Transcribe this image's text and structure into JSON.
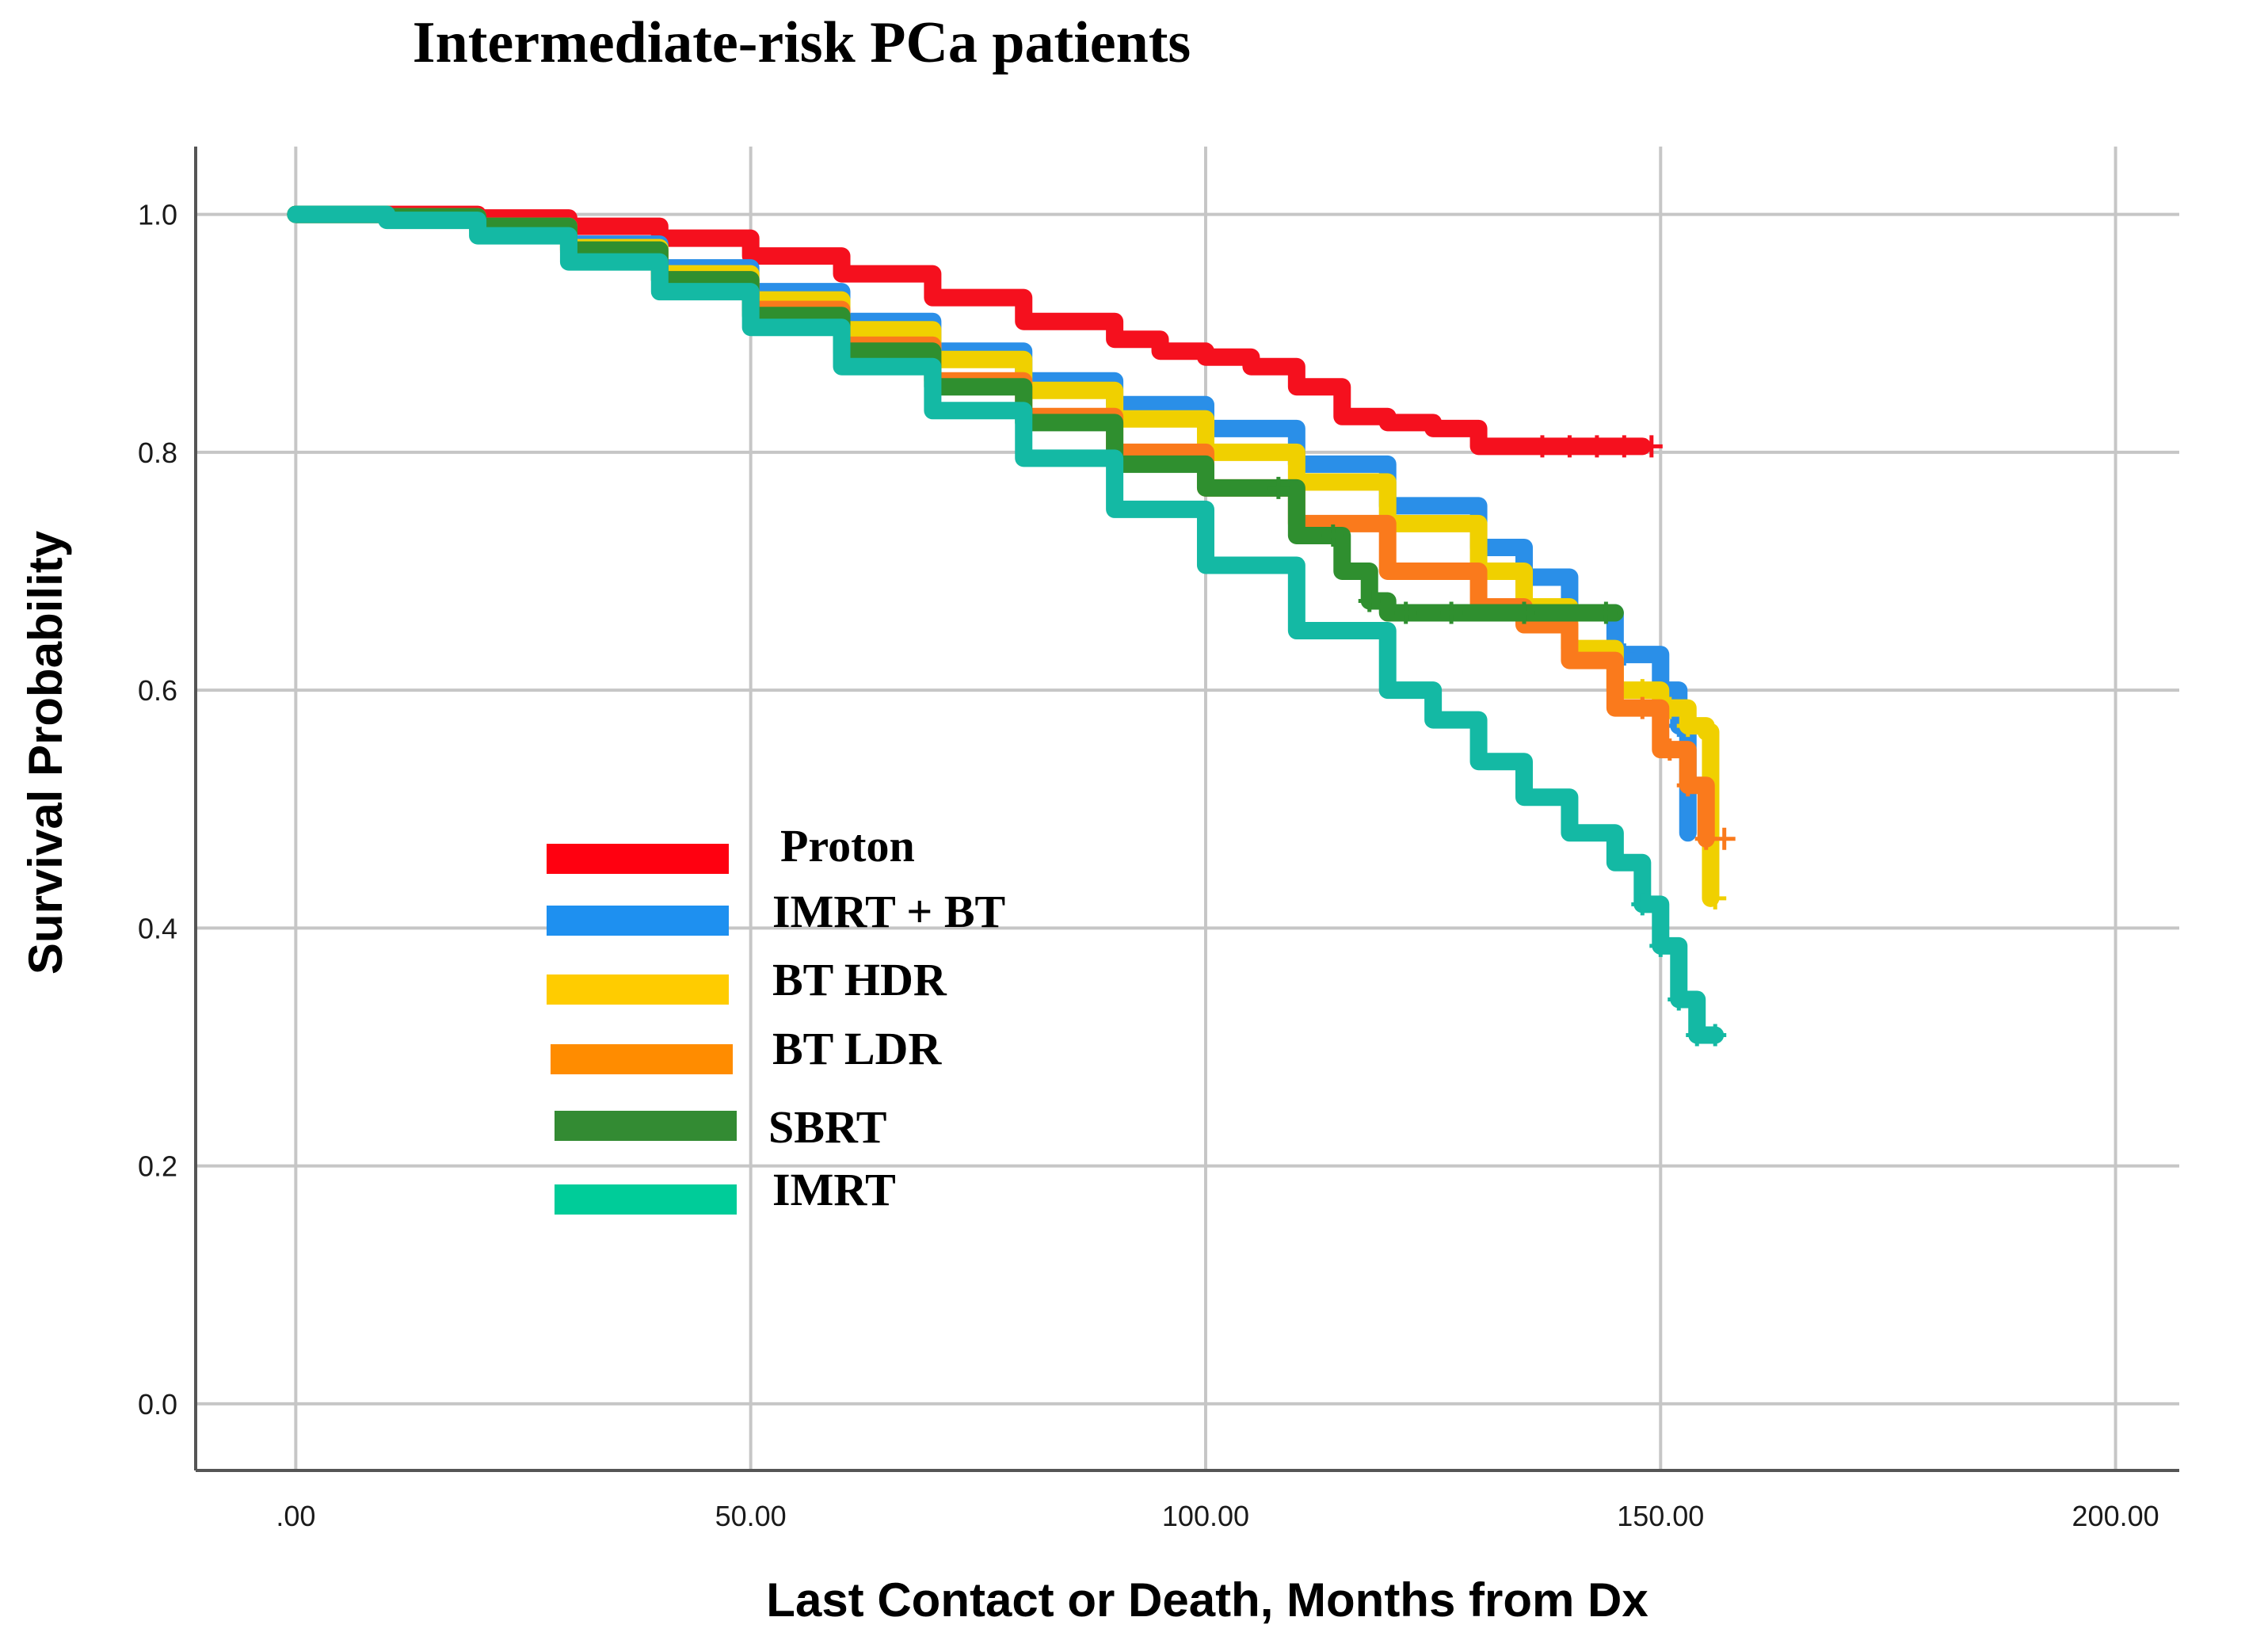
{
  "chart_data": {
    "type": "line",
    "title": "Intermediate-risk PCa patients",
    "xlabel": "Last Contact or Death, Months from Dx",
    "ylabel": "Survival Probability",
    "xlim": [
      -11,
      207
    ],
    "ylim": [
      -0.056,
      1.057
    ],
    "xticks": [
      0,
      50,
      100,
      150,
      200
    ],
    "xtick_labels": [
      ".00",
      "50.00",
      "100.00",
      "150.00",
      "200.00"
    ],
    "yticks": [
      0.0,
      0.2,
      0.4,
      0.6,
      0.8,
      1.0
    ],
    "ytick_labels": [
      "0.0",
      "0.2",
      "0.4",
      "0.6",
      "0.8",
      "1.0"
    ],
    "grid": true,
    "legend_position": "lower-left",
    "series": [
      {
        "name": "Proton",
        "color": "#f5101e",
        "x": [
          0,
          10,
          20,
          30,
          40,
          50,
          60,
          70,
          80,
          90,
          95,
          100,
          105,
          110,
          115,
          120,
          125,
          130,
          135,
          140,
          148
        ],
        "y": [
          1.0,
          1.0,
          0.997,
          0.99,
          0.98,
          0.965,
          0.95,
          0.93,
          0.91,
          0.895,
          0.885,
          0.88,
          0.872,
          0.855,
          0.83,
          0.825,
          0.82,
          0.805,
          0.805,
          0.805,
          0.805
        ],
        "censor_x": [
          137,
          140,
          143,
          146,
          149
        ]
      },
      {
        "name": "IMRT + BT",
        "color": "#2a8fe8",
        "x": [
          0,
          10,
          20,
          30,
          40,
          50,
          60,
          70,
          80,
          90,
          100,
          110,
          120,
          130,
          135,
          140,
          145,
          150,
          152,
          153
        ],
        "y": [
          1.0,
          0.998,
          0.99,
          0.975,
          0.955,
          0.935,
          0.91,
          0.885,
          0.86,
          0.84,
          0.82,
          0.79,
          0.755,
          0.72,
          0.695,
          0.665,
          0.63,
          0.6,
          0.57,
          0.48
        ],
        "censor_x": [
          140,
          146,
          150,
          152
        ]
      },
      {
        "name": "BT HDR",
        "color": "#f0d000",
        "x": [
          0,
          10,
          20,
          30,
          40,
          50,
          60,
          70,
          80,
          90,
          100,
          110,
          120,
          130,
          135,
          140,
          145,
          150,
          153,
          155,
          155.5
        ],
        "y": [
          1.0,
          0.998,
          0.99,
          0.972,
          0.95,
          0.928,
          0.903,
          0.878,
          0.852,
          0.828,
          0.8,
          0.775,
          0.74,
          0.7,
          0.67,
          0.635,
          0.6,
          0.585,
          0.57,
          0.565,
          0.425
        ],
        "censor_x": [
          148,
          151,
          153,
          156
        ]
      },
      {
        "name": "BT LDR",
        "color": "#fa7a1c",
        "x": [
          0,
          10,
          20,
          30,
          40,
          50,
          60,
          70,
          80,
          90,
          100,
          110,
          120,
          130,
          135,
          140,
          145,
          150,
          153,
          155
        ],
        "y": [
          1.0,
          0.997,
          0.988,
          0.968,
          0.945,
          0.92,
          0.89,
          0.86,
          0.83,
          0.8,
          0.77,
          0.74,
          0.7,
          0.67,
          0.655,
          0.625,
          0.585,
          0.55,
          0.52,
          0.475
        ],
        "censor_x": [
          148,
          151,
          153,
          155,
          157
        ]
      },
      {
        "name": "SBRT",
        "color": "#2f8f2f",
        "x": [
          0,
          10,
          20,
          30,
          40,
          50,
          60,
          70,
          80,
          90,
          100,
          110,
          115,
          118,
          120,
          130,
          140,
          145
        ],
        "y": [
          1.0,
          0.998,
          0.99,
          0.97,
          0.945,
          0.915,
          0.885,
          0.855,
          0.825,
          0.79,
          0.77,
          0.73,
          0.7,
          0.675,
          0.665,
          0.665,
          0.665,
          0.665
        ],
        "censor_x": [
          108,
          114,
          118,
          122,
          127,
          135,
          144
        ]
      },
      {
        "name": "IMRT",
        "color": "#14b9a4",
        "x": [
          0,
          10,
          20,
          30,
          40,
          50,
          60,
          70,
          80,
          90,
          100,
          110,
          120,
          125,
          130,
          135,
          140,
          145,
          148,
          150,
          152,
          154,
          155,
          156
        ],
        "y": [
          1.0,
          0.995,
          0.982,
          0.96,
          0.935,
          0.905,
          0.872,
          0.835,
          0.795,
          0.752,
          0.705,
          0.65,
          0.6,
          0.575,
          0.54,
          0.51,
          0.48,
          0.455,
          0.42,
          0.385,
          0.34,
          0.31,
          0.31,
          0.31
        ],
        "censor_x": [
          148,
          150,
          152,
          154,
          156
        ]
      }
    ]
  },
  "legend": {
    "items": [
      {
        "label": "Proton",
        "color": "#ff0010"
      },
      {
        "label": "IMRT + BT",
        "color": "#1e90f0"
      },
      {
        "label": "BT HDR",
        "color": "#ffcc00"
      },
      {
        "label": "BT LDR",
        "color": "#ff8c00"
      },
      {
        "label": "SBRT",
        "color": "#338b33"
      },
      {
        "label": "IMRT",
        "color": "#00cc99"
      }
    ]
  }
}
